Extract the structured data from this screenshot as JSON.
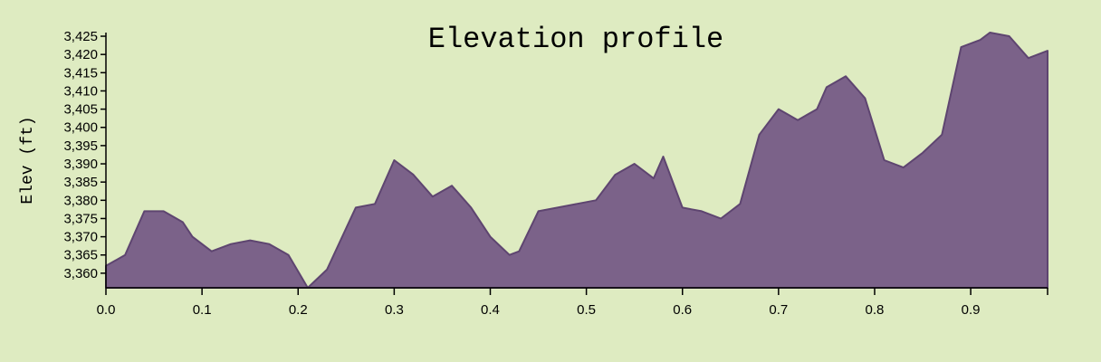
{
  "chart_data": {
    "type": "area",
    "title": "Elevation profile",
    "xlabel": "",
    "ylabel": "Elev (ft)",
    "xlim": [
      0,
      0.98
    ],
    "ylim": [
      3356,
      3426
    ],
    "x_ticks": [
      "0.0",
      "0.1",
      "0.2",
      "0.3",
      "0.4",
      "0.5",
      "0.6",
      "0.7",
      "0.8",
      "0.9"
    ],
    "y_ticks": [
      "3,360",
      "3,365",
      "3,370",
      "3,375",
      "3,380",
      "3,385",
      "3,390",
      "3,395",
      "3,400",
      "3,405",
      "3,410",
      "3,415",
      "3,420",
      "3,425"
    ],
    "grid": false,
    "colors": {
      "fill": "#7b6289",
      "stroke": "#5e4570",
      "background": "#deebc1"
    },
    "x": [
      0.0,
      0.02,
      0.04,
      0.06,
      0.08,
      0.09,
      0.11,
      0.13,
      0.15,
      0.17,
      0.19,
      0.21,
      0.23,
      0.26,
      0.28,
      0.3,
      0.32,
      0.34,
      0.36,
      0.38,
      0.4,
      0.42,
      0.43,
      0.45,
      0.47,
      0.49,
      0.51,
      0.53,
      0.55,
      0.57,
      0.58,
      0.6,
      0.62,
      0.64,
      0.66,
      0.68,
      0.7,
      0.72,
      0.74,
      0.75,
      0.77,
      0.79,
      0.81,
      0.83,
      0.85,
      0.87,
      0.89,
      0.91,
      0.92,
      0.94,
      0.96,
      0.98
    ],
    "series": [
      {
        "values": [
          3362,
          3365,
          3377,
          3377,
          3374,
          3370,
          3366,
          3368,
          3369,
          3368,
          3365,
          3356,
          3361,
          3378,
          3379,
          3391,
          3387,
          3381,
          3384,
          3378,
          3370,
          3365,
          3366,
          3377,
          3378,
          3379,
          3380,
          3387,
          3390,
          3386,
          3392,
          3378,
          3377,
          3375,
          3379,
          3398,
          3405,
          3402,
          3405,
          3411,
          3414,
          3408,
          3391,
          3389,
          3393,
          3398,
          3422,
          3424,
          3426,
          3425,
          3419,
          3421
        ]
      }
    ]
  }
}
